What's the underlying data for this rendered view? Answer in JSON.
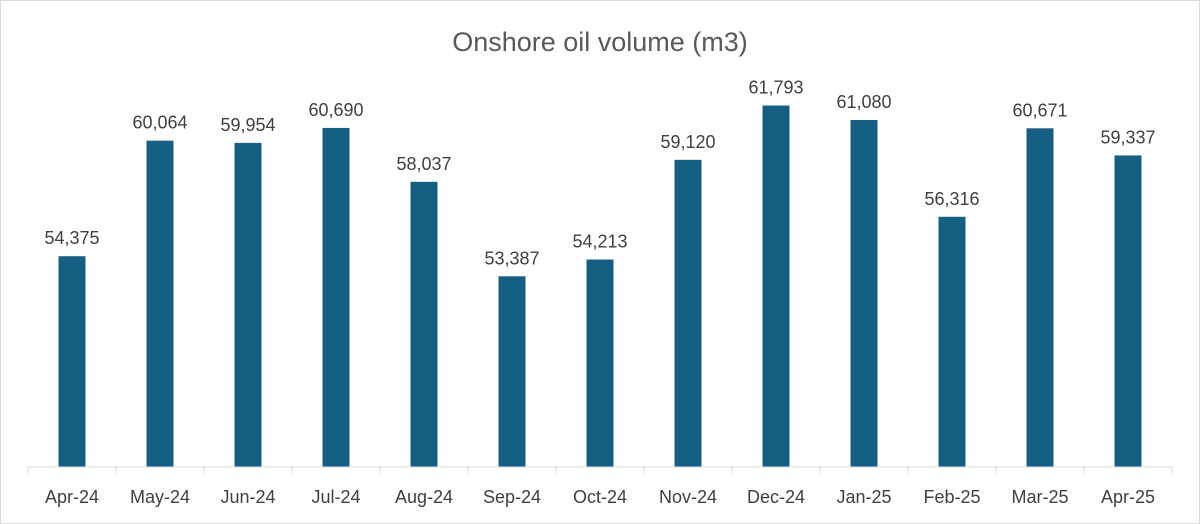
{
  "chart_data": {
    "type": "bar",
    "title": "Onshore oil volume (m3)",
    "xlabel": "",
    "ylabel": "",
    "categories": [
      "Apr-24",
      "May-24",
      "Jun-24",
      "Jul-24",
      "Aug-24",
      "Sep-24",
      "Oct-24",
      "Nov-24",
      "Dec-24",
      "Jan-25",
      "Feb-25",
      "Mar-25",
      "Apr-25"
    ],
    "values": [
      54375,
      60064,
      59954,
      60690,
      58037,
      53387,
      54213,
      59120,
      61793,
      61080,
      56316,
      60671,
      59337
    ],
    "data_labels": [
      "54,375",
      "60,064",
      "59,954",
      "60,690",
      "58,037",
      "53,387",
      "54,213",
      "59,120",
      "61,793",
      "61,080",
      "56,316",
      "60,671",
      "59,337"
    ],
    "ylim": [
      44000,
      63000
    ],
    "grid": false,
    "legend": "none",
    "bar_color": "#156082",
    "axis_color": "#d9d9d9"
  }
}
